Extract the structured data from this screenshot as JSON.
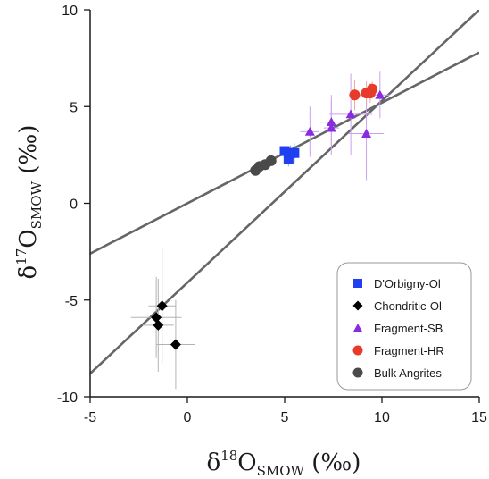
{
  "chart_data": {
    "type": "scatter",
    "xlabel": {
      "prefix": "δ",
      "sup": "18",
      "main": "O",
      "sub": "SMOW",
      "unit": " (‰)"
    },
    "ylabel": {
      "prefix": "δ",
      "sup": "17",
      "main": "O",
      "sub": "SMOW",
      "unit": " (‰)"
    },
    "xlim": [
      -5,
      15
    ],
    "ylim": [
      -10,
      10
    ],
    "xticks": [
      -5,
      0,
      5,
      10,
      15
    ],
    "yticks": [
      -10,
      -5,
      0,
      5,
      10
    ],
    "xtick_labels": [
      "-5",
      "0",
      "5",
      "10",
      "15"
    ],
    "ytick_labels": [
      "-10",
      "-5",
      "0",
      "5",
      "10"
    ],
    "grid": false,
    "legend_position": "bottom-right",
    "lines": [
      {
        "x": [
          -5,
          15
        ],
        "y": [
          -8.8,
          10.0
        ],
        "color": "#666666"
      },
      {
        "x": [
          -5,
          15
        ],
        "y": [
          -2.6,
          7.8
        ],
        "color": "#666666"
      }
    ],
    "series": [
      {
        "name": "D'Orbigny-Ol",
        "marker": "square",
        "color": "#1f3ff0",
        "points": [
          {
            "x": 5.0,
            "y": 2.7,
            "xerr": 0.15,
            "yerr": 0.15
          },
          {
            "x": 5.2,
            "y": 2.3,
            "xerr": 0.2,
            "yerr": 0.4
          },
          {
            "x": 5.3,
            "y": 2.6,
            "xerr": 0.2,
            "yerr": 0.4
          },
          {
            "x": 5.5,
            "y": 2.6,
            "xerr": 0.15,
            "yerr": 0.5
          }
        ]
      },
      {
        "name": "Chondritic-Ol",
        "marker": "diamond",
        "color": "#000000",
        "points": [
          {
            "x": -1.3,
            "y": -5.3,
            "xerr": 0.7,
            "yerr": 3.0
          },
          {
            "x": -1.6,
            "y": -5.9,
            "xerr": 1.3,
            "yerr": 2.1
          },
          {
            "x": -1.5,
            "y": -6.3,
            "xerr": 0.8,
            "yerr": 2.4
          },
          {
            "x": -0.6,
            "y": -7.3,
            "xerr": 1.0,
            "yerr": 2.3
          }
        ]
      },
      {
        "name": "Fragment-SB",
        "marker": "triangle",
        "color": "#8a2be2",
        "points": [
          {
            "x": 6.3,
            "y": 3.7,
            "xerr": 0.5,
            "yerr": 1.3
          },
          {
            "x": 7.4,
            "y": 3.9,
            "xerr": 0.4,
            "yerr": 1.4
          },
          {
            "x": 7.4,
            "y": 4.2,
            "xerr": 0.6,
            "yerr": 1.4
          },
          {
            "x": 8.4,
            "y": 4.6,
            "xerr": 1.1,
            "yerr": 2.1
          },
          {
            "x": 9.2,
            "y": 3.6,
            "xerr": 0.9,
            "yerr": 2.4
          },
          {
            "x": 9.9,
            "y": 5.6,
            "xerr": 0.5,
            "yerr": 1.2
          }
        ]
      },
      {
        "name": "Fragment-HR",
        "marker": "circle",
        "color": "#e83a2a",
        "points": [
          {
            "x": 8.6,
            "y": 5.6,
            "xerr": 0.3,
            "yerr": 0.8
          },
          {
            "x": 9.2,
            "y": 5.7,
            "xerr": 0.2,
            "yerr": 0.6
          },
          {
            "x": 9.4,
            "y": 5.7,
            "xerr": 0.3,
            "yerr": 0.5
          },
          {
            "x": 9.5,
            "y": 5.9,
            "xerr": 0.2,
            "yerr": 0.4
          }
        ]
      },
      {
        "name": "Bulk Angrites",
        "marker": "circle",
        "color": "#4a4a4a",
        "points": [
          {
            "x": 3.5,
            "y": 1.7,
            "xerr": 0.0,
            "yerr": 0.0
          },
          {
            "x": 3.7,
            "y": 1.9,
            "xerr": 0.0,
            "yerr": 0.0
          },
          {
            "x": 4.0,
            "y": 2.0,
            "xerr": 0.0,
            "yerr": 0.0
          },
          {
            "x": 4.3,
            "y": 2.2,
            "xerr": 0.0,
            "yerr": 0.0
          }
        ]
      }
    ]
  }
}
